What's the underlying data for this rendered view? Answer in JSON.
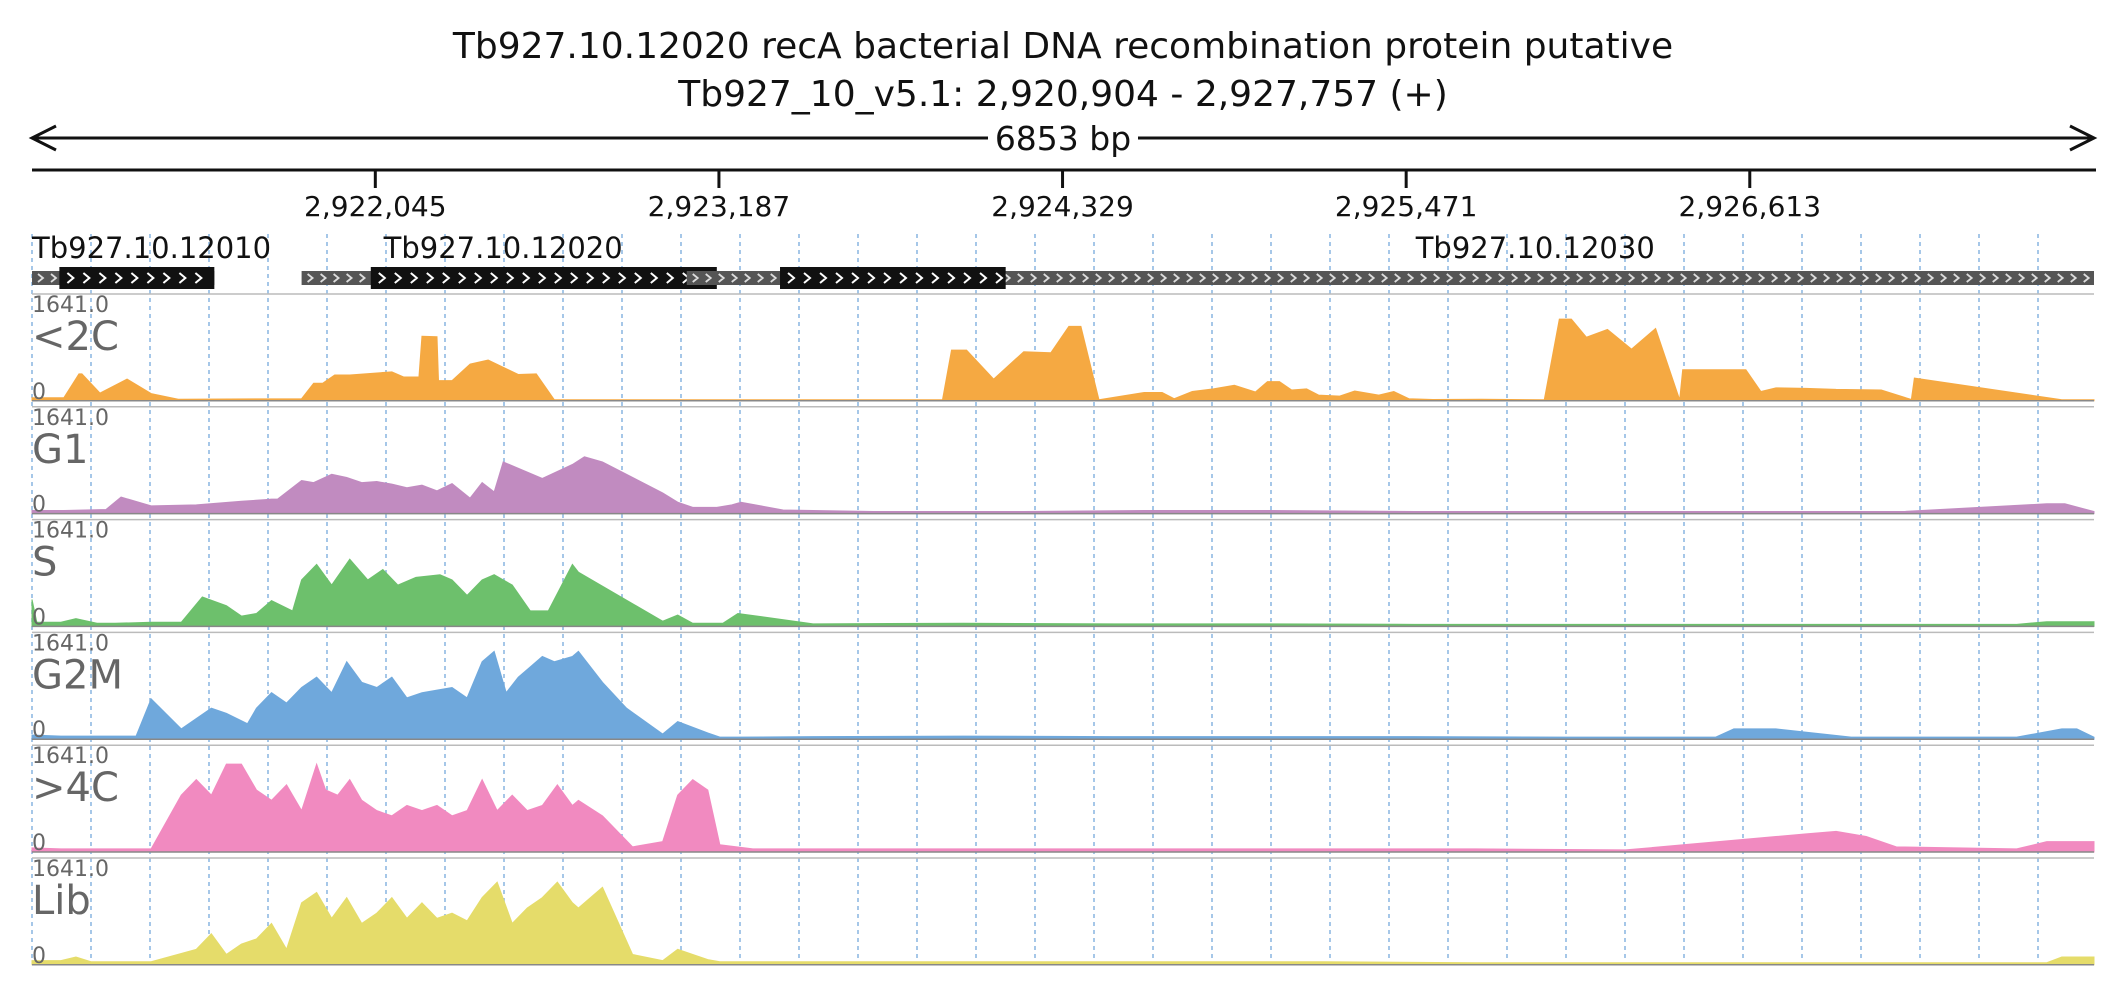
{
  "chart_data": {
    "type": "area",
    "title": "Tb927.10.12020  recA bacterial DNA recombination protein  putative",
    "subtitle": "Tb927_10_v5.1: 2,920,904 - 2,927,757 (+)",
    "span_label": "6853 bp",
    "xlim": [
      2920904,
      2927757
    ],
    "x_ticks": [
      2922045,
      2923187,
      2924329,
      2925471,
      2926613
    ],
    "x_tick_labels": [
      "2,922,045",
      "2,923,187",
      "2,924,329",
      "2,925,471",
      "2,926,613"
    ],
    "grid": true,
    "genes": [
      {
        "name": "Tb927.10.12010",
        "label_at": 2921425,
        "start": 2920904,
        "end": 2921510,
        "cds": [
          2920995,
          2921510
        ]
      },
      {
        "name": "Tb927.10.12020",
        "label_at": 2922470,
        "start": 2921800,
        "end": 2923200,
        "cds": [
          2922030,
          2923180
        ]
      },
      {
        "name": "Tb927.10.12030",
        "label_at": 2925900,
        "start": 2923080,
        "end": 2927757,
        "cds": [
          2923390,
          2924140
        ]
      }
    ],
    "tracks": [
      {
        "name": "<2C",
        "color": "#f5a942",
        "ymax": 1641.0,
        "ymin": 0,
        "x": [
          2920904,
          2921010,
          2921060,
          2921070,
          2921130,
          2921220,
          2921300,
          2921390,
          2921800,
          2921840,
          2921870,
          2921910,
          2921960,
          2922100,
          2922140,
          2922190,
          2922200,
          2922250,
          2922255,
          2922300,
          2922360,
          2922420,
          2922520,
          2922580,
          2922640,
          2922700,
          2922720,
          2923180,
          2923930,
          2923960,
          2924010,
          2924100,
          2924200,
          2924290,
          2924350,
          2924390,
          2924450,
          2924600,
          2924660,
          2924700,
          2924760,
          2924830,
          2924900,
          2924970,
          2925010,
          2925050,
          2925090,
          2925140,
          2925180,
          2925250,
          2925300,
          2925380,
          2925430,
          2925480,
          2925560,
          2925720,
          2925930,
          2925980,
          2926020,
          2926070,
          2926140,
          2926220,
          2926300,
          2926380,
          2926390,
          2926600,
          2926650,
          2926700,
          2926800,
          2926900,
          2927050,
          2927150,
          2927160,
          2927650,
          2927757
        ],
        "y": [
          60,
          60,
          520,
          520,
          150,
          420,
          140,
          30,
          40,
          340,
          340,
          500,
          500,
          560,
          460,
          460,
          1250,
          1240,
          390,
          390,
          710,
          790,
          510,
          520,
          20,
          20,
          20,
          20,
          20,
          980,
          980,
          420,
          950,
          930,
          1440,
          1440,
          20,
          160,
          160,
          40,
          180,
          230,
          300,
          170,
          370,
          370,
          210,
          230,
          110,
          90,
          190,
          110,
          180,
          40,
          25,
          30,
          20,
          1580,
          1580,
          1230,
          1380,
          1000,
          1400,
          20,
          600,
          600,
          180,
          250,
          240,
          220,
          210,
          25,
          440,
          20,
          20
        ]
      },
      {
        "name": "G1",
        "color": "#c18bc0",
        "ymax": 1641.0,
        "ymin": 0,
        "x": [
          2920904,
          2921010,
          2921150,
          2921200,
          2921300,
          2921450,
          2921600,
          2921680,
          2921700,
          2921720,
          2921800,
          2921840,
          2921900,
          2921950,
          2922000,
          2922050,
          2922100,
          2922150,
          2922200,
          2922250,
          2922300,
          2922360,
          2922400,
          2922440,
          2922470,
          2922600,
          2922700,
          2922740,
          2922800,
          2923000,
          2923050,
          2923100,
          2923180,
          2923230,
          2923260,
          2923400,
          2923700,
          2924200,
          2924600,
          2925000,
          2925500,
          2926000,
          2926500,
          2927000,
          2927100,
          2927120,
          2927600,
          2927660,
          2927757
        ],
        "y": [
          60,
          60,
          80,
          320,
          150,
          170,
          240,
          270,
          280,
          280,
          640,
          600,
          760,
          700,
          600,
          620,
          570,
          500,
          550,
          440,
          580,
          300,
          600,
          420,
          1000,
          680,
          950,
          1100,
          1000,
          400,
          220,
          120,
          120,
          170,
          220,
          70,
          40,
          40,
          60,
          60,
          40,
          40,
          40,
          40,
          40,
          40,
          190,
          190,
          40
        ]
      },
      {
        "name": "S",
        "color": "#6dc06c",
        "ymax": 1641.0,
        "ymin": 0,
        "x": [
          2920904,
          2920920,
          2921000,
          2921050,
          2921120,
          2921180,
          2921300,
          2921400,
          2921470,
          2921550,
          2921600,
          2921650,
          2921700,
          2921770,
          2921800,
          2921850,
          2921900,
          2921960,
          2922020,
          2922070,
          2922120,
          2922180,
          2922260,
          2922300,
          2922350,
          2922400,
          2922440,
          2922500,
          2922560,
          2922620,
          2922700,
          2922720,
          2923000,
          2923050,
          2923100,
          2923170,
          2923200,
          2923250,
          2923500,
          2924000,
          2924500,
          2925000,
          2925500,
          2926000,
          2926500,
          2927000,
          2927100,
          2927500,
          2927600,
          2927757
        ],
        "y": [
          520,
          80,
          80,
          150,
          60,
          60,
          80,
          80,
          570,
          400,
          200,
          250,
          500,
          300,
          900,
          1200,
          800,
          1300,
          900,
          1100,
          800,
          950,
          1000,
          900,
          600,
          900,
          1000,
          800,
          300,
          300,
          1200,
          1050,
          100,
          220,
          60,
          60,
          60,
          250,
          50,
          60,
          50,
          50,
          40,
          40,
          40,
          40,
          40,
          40,
          90,
          90
        ]
      },
      {
        "name": "G2M",
        "color": "#6fa8dc",
        "ymax": 1641.0,
        "ymin": 0,
        "x": [
          2920904,
          2921000,
          2921100,
          2921200,
          2921250,
          2921300,
          2921400,
          2921450,
          2921500,
          2921550,
          2921620,
          2921650,
          2921700,
          2921750,
          2921800,
          2921850,
          2921900,
          2921950,
          2922000,
          2922050,
          2922100,
          2922150,
          2922200,
          2922250,
          2922300,
          2922350,
          2922400,
          2922440,
          2922480,
          2922520,
          2922560,
          2922600,
          2922640,
          2922700,
          2922720,
          2922800,
          2922880,
          2923000,
          2923050,
          2923150,
          2923190,
          2923250,
          2923500,
          2924000,
          2924500,
          2925000,
          2925500,
          2926000,
          2926500,
          2926560,
          2926700,
          2926950,
          2927000,
          2927500,
          2927650,
          2927700,
          2927757
        ],
        "y": [
          80,
          60,
          60,
          60,
          60,
          780,
          200,
          400,
          600,
          500,
          300,
          600,
          900,
          700,
          1000,
          1200,
          900,
          1500,
          1100,
          1000,
          1200,
          800,
          900,
          950,
          1000,
          800,
          1500,
          1700,
          900,
          1200,
          1400,
          1600,
          1500,
          1600,
          1700,
          1100,
          600,
          100,
          340,
          120,
          40,
          40,
          50,
          60,
          50,
          50,
          50,
          40,
          40,
          200,
          200,
          40,
          40,
          40,
          200,
          200,
          40
        ]
      },
      {
        "name": ">4C",
        "color": "#f18ac0",
        "ymax": 1641.0,
        "ymin": 0,
        "x": [
          2920904,
          2921000,
          2921100,
          2921200,
          2921300,
          2921400,
          2921450,
          2921500,
          2921550,
          2921600,
          2921650,
          2921700,
          2921750,
          2921800,
          2921850,
          2921880,
          2921920,
          2921960,
          2922000,
          2922050,
          2922100,
          2922150,
          2922200,
          2922250,
          2922300,
          2922350,
          2922400,
          2922450,
          2922500,
          2922550,
          2922600,
          2922650,
          2922700,
          2922720,
          2922800,
          2922900,
          2923000,
          2923050,
          2923100,
          2923150,
          2923190,
          2923300,
          2923700,
          2924200,
          2924700,
          2925200,
          2925700,
          2926200,
          2926700,
          2926800,
          2926900,
          2927000,
          2927100,
          2927500,
          2927600,
          2927757
        ],
        "y": [
          80,
          60,
          60,
          60,
          60,
          1100,
          1400,
          1100,
          1700,
          1700,
          1200,
          1000,
          1300,
          800,
          1700,
          1200,
          1100,
          1400,
          1000,
          800,
          700,
          900,
          800,
          900,
          700,
          800,
          1400,
          800,
          1100,
          800,
          900,
          1300,
          900,
          1000,
          700,
          100,
          200,
          1100,
          1400,
          1200,
          140,
          60,
          60,
          60,
          60,
          60,
          60,
          40,
          300,
          350,
          400,
          300,
          100,
          60,
          200,
          200
        ]
      },
      {
        "name": "Lib",
        "color": "#e5dc6a",
        "ymax": 1641.0,
        "ymin": 0,
        "x": [
          2920904,
          2921000,
          2921050,
          2921100,
          2921300,
          2921450,
          2921500,
          2921550,
          2921600,
          2921650,
          2921700,
          2921750,
          2921800,
          2921850,
          2921900,
          2921950,
          2922000,
          2922050,
          2922100,
          2922150,
          2922200,
          2922250,
          2922300,
          2922350,
          2922400,
          2922450,
          2922500,
          2922550,
          2922600,
          2922650,
          2922700,
          2922720,
          2922800,
          2922900,
          2923000,
          2923050,
          2923100,
          2923150,
          2923190,
          2923300,
          2923700,
          2924200,
          2924700,
          2925200,
          2925700,
          2926200,
          2926700,
          2927200,
          2927600,
          2927650,
          2927757
        ],
        "y": [
          80,
          80,
          150,
          60,
          60,
          300,
          600,
          200,
          400,
          500,
          800,
          300,
          1200,
          1400,
          900,
          1300,
          800,
          1000,
          1300,
          900,
          1200,
          900,
          1000,
          850,
          1300,
          1600,
          800,
          1100,
          1300,
          1600,
          1200,
          1100,
          1500,
          200,
          80,
          300,
          200,
          100,
          60,
          60,
          60,
          60,
          60,
          60,
          40,
          40,
          40,
          40,
          40,
          150,
          150
        ]
      }
    ]
  }
}
